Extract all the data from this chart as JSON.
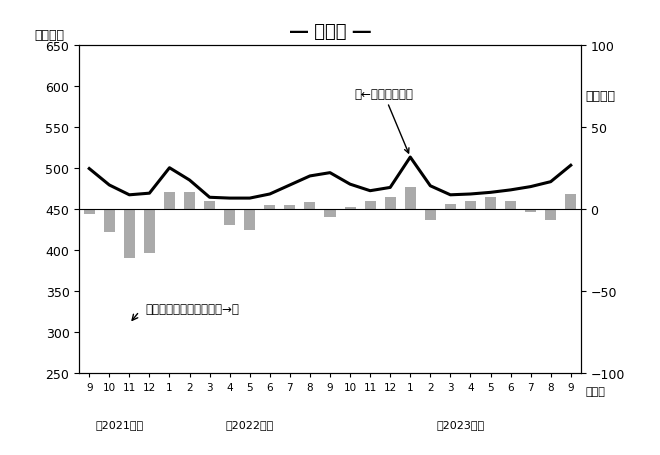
{
  "title": "― 建設業 ―",
  "ylabel_left": "（万人）",
  "ylabel_right": "（万人）",
  "x_tick_labels": [
    "9",
    "10",
    "11",
    "12",
    "1",
    "2",
    "3",
    "4",
    "5",
    "6",
    "7",
    "8",
    "9",
    "10",
    "11",
    "12",
    "1",
    "2",
    "3",
    "4",
    "5",
    "6",
    "7",
    "8",
    "9"
  ],
  "line_values": [
    499,
    479,
    467,
    469,
    500,
    485,
    464,
    463,
    463,
    468,
    479,
    490,
    494,
    480,
    472,
    476,
    513,
    478,
    467,
    468,
    470,
    473,
    477,
    483,
    503
  ],
  "bar_values": [
    -3,
    -14,
    -30,
    -27,
    10,
    10,
    5,
    -10,
    -13,
    2,
    2,
    4,
    -5,
    1,
    5,
    7,
    13,
    -7,
    3,
    5,
    7,
    5,
    -2,
    -7,
    9
  ],
  "left_ylim": [
    250,
    650
  ],
  "left_yticks": [
    250,
    300,
    350,
    400,
    450,
    500,
    550,
    600,
    650
  ],
  "right_ylim": [
    -100,
    100
  ],
  "right_yticks": [
    -100,
    -50,
    0,
    50,
    100
  ],
  "bar_color": "#aaaaaa",
  "line_color": "#000000",
  "annotation_line": "（←左目盛）実数",
  "annotation_bar": "対前年同月増減（右目盛→）",
  "background_color": "#ffffff",
  "year_labels": [
    {
      "text": "（2021年）",
      "xi": 1.5
    },
    {
      "text": "（2022年）",
      "xi": 8.0
    },
    {
      "text": "（2023年）",
      "xi": 18.5
    }
  ]
}
